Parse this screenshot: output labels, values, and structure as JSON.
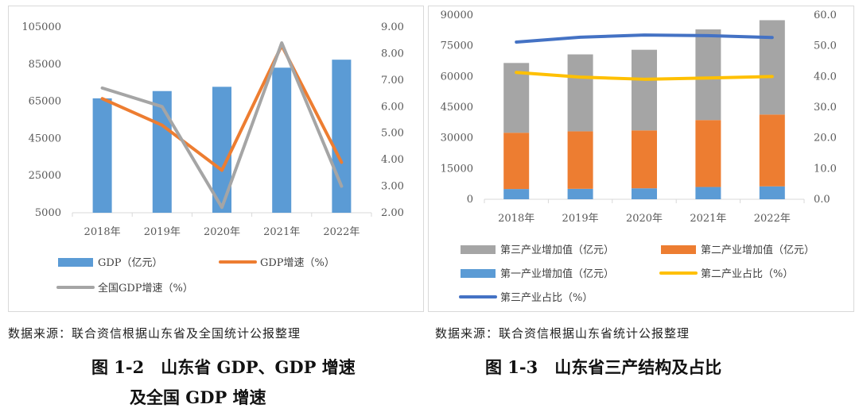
{
  "charts": [
    {
      "id": "left",
      "type": "bar+line",
      "categories": [
        "2018年",
        "2019年",
        "2020年",
        "2021年",
        "2022年"
      ],
      "left_axis": {
        "min": 5000,
        "max": 105000,
        "ticks": [
          "5000",
          "25000",
          "45000",
          "65000",
          "85000",
          "105000"
        ],
        "tick_values": [
          5000,
          25000,
          45000,
          65000,
          85000,
          105000
        ]
      },
      "right_axis": {
        "min": 2.0,
        "max": 9.0,
        "ticks": [
          "2.00",
          "3.00",
          "4.00",
          "5.00",
          "6.00",
          "7.00",
          "8.00",
          "9.00"
        ],
        "tick_values": [
          2,
          3,
          4,
          5,
          6,
          7,
          8,
          9
        ]
      },
      "bars": [
        {
          "name": "GDP（亿元）",
          "values": [
            66600,
            70500,
            72800,
            83100,
            87400
          ],
          "color": "#5b9bd5"
        }
      ],
      "lines": [
        {
          "name": "GDP增速（%）",
          "values": [
            6.3,
            5.3,
            3.6,
            8.3,
            3.9
          ],
          "color": "#ed7d31"
        },
        {
          "name": "全国GDP增速（%）",
          "values": [
            6.7,
            6.0,
            2.2,
            8.4,
            3.0
          ],
          "color": "#a5a5a5"
        }
      ]
    },
    {
      "id": "right",
      "type": "stacked-bar+line",
      "categories": [
        "2018年",
        "2019年",
        "2020年",
        "2021年",
        "2022年"
      ],
      "left_axis": {
        "min": 0,
        "max": 90000,
        "ticks": [
          "0",
          "15000",
          "30000",
          "45000",
          "60000",
          "75000",
          "90000"
        ],
        "tick_values": [
          0,
          15000,
          30000,
          45000,
          60000,
          75000,
          90000
        ]
      },
      "right_axis": {
        "min": 0,
        "max": 60,
        "ticks": [
          "0.0",
          "10.0",
          "20.0",
          "30.0",
          "40.0",
          "50.0",
          "60.0"
        ],
        "tick_values": [
          0,
          10,
          20,
          30,
          40,
          50,
          60
        ]
      },
      "bars": [
        {
          "name": "第一产业增加值（亿元）",
          "values": [
            5000,
            5100,
            5350,
            6000,
            6300
          ],
          "color": "#5b9bd5"
        },
        {
          "name": "第二产业增加值（亿元）",
          "values": [
            27500,
            28100,
            28300,
            32700,
            35100
          ],
          "color": "#ed7d31"
        },
        {
          "name": "第三产业增加值（亿元）",
          "values": [
            34100,
            37600,
            39400,
            44300,
            46100
          ],
          "color": "#a5a5a5"
        }
      ],
      "lines": [
        {
          "name": "第二产业占比（%）",
          "values": [
            41.3,
            39.8,
            39.1,
            39.5,
            40.0
          ],
          "color": "#ffc000"
        },
        {
          "name": "第三产业占比（%）",
          "values": [
            51.2,
            52.8,
            53.5,
            53.3,
            52.7
          ],
          "color": "#4472c4"
        }
      ]
    }
  ],
  "chart_data": [
    {
      "type": "bar",
      "title": "图 1-2 山东省 GDP、GDP 增速及全国 GDP 增速",
      "categories": [
        "2018年",
        "2019年",
        "2020年",
        "2021年",
        "2022年"
      ],
      "series": [
        {
          "name": "GDP（亿元）",
          "values": [
            66600,
            70500,
            72800,
            83100,
            87400
          ],
          "axis": "left"
        },
        {
          "name": "GDP增速（%）",
          "values": [
            6.3,
            5.3,
            3.6,
            8.3,
            3.9
          ],
          "axis": "right"
        },
        {
          "name": "全国GDP增速（%）",
          "values": [
            6.7,
            6.0,
            2.2,
            8.4,
            3.0
          ],
          "axis": "right"
        }
      ],
      "ylim": [
        5000,
        105000
      ],
      "y2lim": [
        2.0,
        9.0
      ]
    },
    {
      "type": "bar",
      "title": "图 1-3 山东省三产结构及占比",
      "categories": [
        "2018年",
        "2019年",
        "2020年",
        "2021年",
        "2022年"
      ],
      "series": [
        {
          "name": "第一产业增加值（亿元）",
          "values": [
            5000,
            5100,
            5350,
            6000,
            6300
          ],
          "stacked": true
        },
        {
          "name": "第二产业增加值（亿元）",
          "values": [
            27500,
            28100,
            28300,
            32700,
            35100
          ],
          "stacked": true
        },
        {
          "name": "第三产业增加值（亿元）",
          "values": [
            34100,
            37600,
            39400,
            44300,
            46100
          ],
          "stacked": true
        },
        {
          "name": "第二产业占比（%）",
          "values": [
            41.3,
            39.8,
            39.1,
            39.5,
            40.0
          ],
          "axis": "right"
        },
        {
          "name": "第三产业占比（%）",
          "values": [
            51.2,
            52.8,
            53.5,
            53.3,
            52.7
          ],
          "axis": "right"
        }
      ],
      "ylim": [
        0,
        90000
      ],
      "y2lim": [
        0,
        60
      ]
    }
  ],
  "sources": {
    "left": "数据来源：联合资信根据山东省及全国统计公报整理",
    "right": "数据来源：联合资信根据山东省统计公报整理"
  },
  "captions": {
    "left_line1": "图 1-2　山东省 GDP、GDP 增速",
    "left_line2": "及全国 GDP 增速",
    "right": "图 1-3　山东省三产结构及占比"
  }
}
